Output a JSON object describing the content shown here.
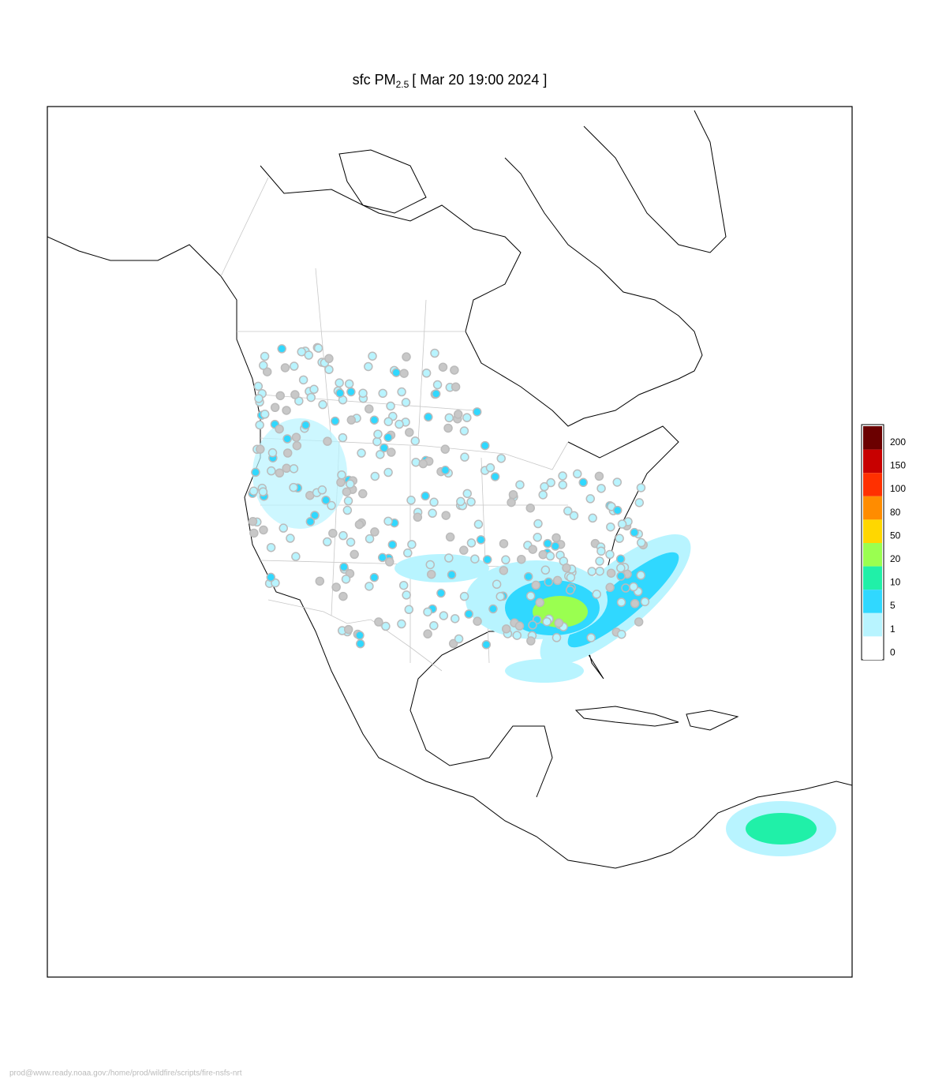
{
  "header": {
    "title_main": "sfc PM",
    "title_sub": "2.5",
    "title_rest": "[ Mar 20 19:00 2024 ]"
  },
  "legend": {
    "entries": [
      {
        "value": 200,
        "color": "#6b0000"
      },
      {
        "value": 150,
        "color": "#c80000"
      },
      {
        "value": 100,
        "color": "#ff3000"
      },
      {
        "value": 80,
        "color": "#ff8c00"
      },
      {
        "value": 50,
        "color": "#ffd700"
      },
      {
        "value": 20,
        "color": "#9aff50"
      },
      {
        "value": 10,
        "color": "#20f0a8"
      },
      {
        "value": 5,
        "color": "#30d8ff"
      },
      {
        "value": 1,
        "color": "#b8f4ff"
      },
      {
        "value": 0,
        "color": "#ffffff"
      }
    ]
  },
  "footer": {
    "text": "prod@www.ready.noaa.gov:/home/prod/wildfire/scripts/fire-nsfs-nrt"
  }
}
